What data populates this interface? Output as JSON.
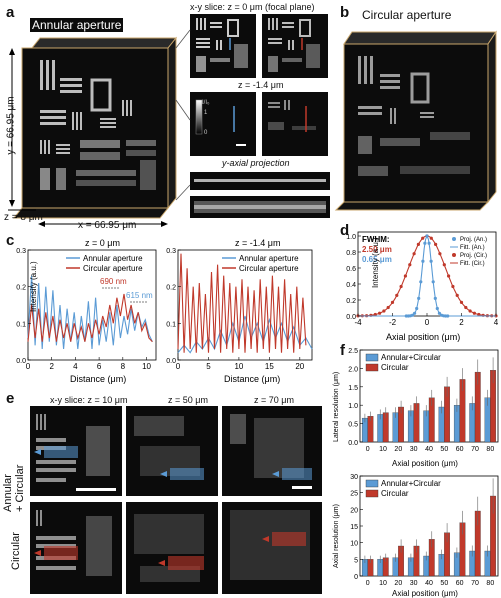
{
  "panels": {
    "a": "a",
    "b": "b",
    "c": "c",
    "d": "d",
    "e": "e",
    "f": "f"
  },
  "a": {
    "title": "Annular aperture",
    "y_dim": "y = 66.95 μm",
    "z_dim": "z = 8 μm",
    "x_dim": "x = 66.95 μm"
  },
  "b": {
    "title": "Circular aperture"
  },
  "middle": {
    "slice_title": "x-y slice: z = 0 μm (focal plane)",
    "slice_title2": "z = -1.4 μm",
    "colorbar_label": "I/I₀",
    "colorbar_max": "1",
    "colorbar_min": "0",
    "proj_title": "y-axial projection"
  },
  "c": {
    "left_title": "z = 0 μm",
    "right_title": "z = -1.4 μm",
    "ylabel": "Intensity (a.u.)",
    "xlabel": "Distance (μm)",
    "legend": [
      "Annular aperture",
      "Circular aperture"
    ],
    "ann_690": "690 nm",
    "ann_615": "615 nm",
    "left_xticks": [
      "0",
      "2",
      "4",
      "6",
      "8",
      "10"
    ],
    "right_xticks": [
      "0",
      "5",
      "10",
      "15",
      "20"
    ],
    "left_yticks": [
      "0.0",
      "0.1",
      "0.2",
      "0.3"
    ],
    "right_yticks": [
      "0.0",
      "0.1",
      "0.2",
      "0.3"
    ]
  },
  "d": {
    "fwhm_label": "FWHM:",
    "fwhm_red": "2.50 μm",
    "fwhm_blue": "0.65 μm",
    "legend": [
      "Proj. (An.)",
      "Fitt. (An.)",
      "Proj. (Cir.)",
      "Fitt. (Cir.)"
    ],
    "ylabel": "Intensity (a.u.)",
    "xlabel": "Axial position (μm)",
    "xticks": [
      "-4",
      "-2",
      "0",
      "2",
      "4"
    ],
    "yticks": [
      "0.0",
      "0.2",
      "0.4",
      "0.6",
      "0.8",
      "1.0"
    ]
  },
  "e": {
    "title1": "x-y slice: z = 10 μm",
    "title2": "z = 50 μm",
    "title3": "z = 70 μm",
    "row1_label": "Annular\n+ Circular",
    "row2_label": "Circular"
  },
  "f": {
    "legend": [
      "Annular+Circular",
      "Circular"
    ],
    "top_ylabel": "Lateral resolution (μm)",
    "bottom_ylabel": "Axial resolution (μm)",
    "xlabel": "Axial position (μm)",
    "xticks": [
      "0",
      "10",
      "20",
      "30",
      "40",
      "50",
      "60",
      "70",
      "80"
    ],
    "top_yticks": [
      "0.0",
      "0.5",
      "1.0",
      "1.5",
      "2.0",
      "2.5"
    ],
    "bottom_yticks": [
      "0",
      "5",
      "10",
      "15",
      "20",
      "25",
      "30"
    ]
  },
  "colors": {
    "blue": "#5b9bd5",
    "red": "#c0392b",
    "box": "#c9a66b"
  },
  "chart_data": [
    {
      "type": "line",
      "title": "z = 0 μm",
      "xlabel": "Distance (μm)",
      "ylabel": "Intensity (a.u.)",
      "xlim": [
        0,
        10.8
      ],
      "ylim": [
        0,
        0.3
      ],
      "series": [
        {
          "name": "Annular aperture",
          "x": [
            0,
            0.3,
            0.6,
            0.9,
            1.2,
            1.5,
            1.8,
            2.1,
            2.4,
            2.7,
            3.0,
            3.3,
            3.6,
            3.9,
            4.2,
            4.5,
            4.8,
            5.1,
            5.4,
            5.7,
            6.0,
            6.3,
            6.6,
            6.9,
            7.2,
            7.5,
            7.8,
            8.1,
            8.4,
            8.7,
            9.0,
            9.3,
            9.6,
            9.9,
            10.2,
            10.5
          ],
          "y": [
            0.06,
            0.23,
            0.04,
            0.21,
            0.03,
            0.2,
            0.05,
            0.19,
            0.04,
            0.15,
            0.03,
            0.14,
            0.05,
            0.13,
            0.03,
            0.12,
            0.05,
            0.16,
            0.03,
            0.17,
            0.04,
            0.11,
            0.05,
            0.13,
            0.04,
            0.15,
            0.06,
            0.12,
            0.07,
            0.14,
            0.08,
            0.13,
            0.09,
            0.11,
            0.07,
            0.05
          ]
        },
        {
          "name": "Circular aperture",
          "x": [
            0,
            0.3,
            0.6,
            0.9,
            1.2,
            1.5,
            1.8,
            2.1,
            2.4,
            2.7,
            3.0,
            3.3,
            3.6,
            3.9,
            4.2,
            4.5,
            4.8,
            5.1,
            5.4,
            5.7,
            6.0,
            6.3,
            6.6,
            6.9,
            7.2,
            7.5,
            7.8,
            8.1,
            8.4,
            8.7,
            9.0,
            9.3,
            9.6,
            9.9,
            10.2,
            10.5
          ],
          "y": [
            0.05,
            0.15,
            0.06,
            0.14,
            0.05,
            0.13,
            0.06,
            0.12,
            0.05,
            0.11,
            0.06,
            0.1,
            0.05,
            0.1,
            0.06,
            0.09,
            0.05,
            0.1,
            0.06,
            0.11,
            0.07,
            0.12,
            0.09,
            0.15,
            0.1,
            0.17,
            0.12,
            0.18,
            0.11,
            0.15,
            0.1,
            0.13,
            0.08,
            0.1,
            0.06,
            0.05
          ]
        }
      ]
    },
    {
      "type": "line",
      "title": "z = -1.4 μm",
      "xlabel": "Distance (μm)",
      "ylabel": "Intensity (a.u.)",
      "xlim": [
        0,
        22
      ],
      "ylim": [
        0,
        0.3
      ],
      "series": [
        {
          "name": "Annular aperture",
          "x": [
            0,
            1,
            2,
            3,
            4,
            5,
            6,
            7,
            8,
            9,
            10,
            11,
            12,
            13,
            14,
            15,
            16,
            17,
            18,
            19,
            20,
            21,
            22
          ],
          "y": [
            0.02,
            0.04,
            0.02,
            0.05,
            0.03,
            0.06,
            0.03,
            0.08,
            0.04,
            0.1,
            0.05,
            0.12,
            0.06,
            0.1,
            0.05,
            0.11,
            0.06,
            0.1,
            0.05,
            0.09,
            0.04,
            0.06,
            0.03
          ]
        },
        {
          "name": "Circular aperture",
          "x": [
            0,
            0.5,
            1,
            1.5,
            2,
            2.5,
            3,
            3.5,
            4,
            4.5,
            5,
            5.5,
            6,
            6.5,
            7,
            7.5,
            8,
            8.5,
            9,
            9.5,
            10,
            10.5,
            11,
            11.5,
            12,
            12.5,
            13,
            13.5,
            14,
            14.5,
            15,
            15.5,
            16,
            16.5,
            17,
            17.5,
            18,
            18.5,
            19,
            19.5,
            20,
            20.5,
            21
          ],
          "y": [
            0.03,
            0.29,
            0.02,
            0.25,
            0.03,
            0.2,
            0.02,
            0.21,
            0.03,
            0.18,
            0.02,
            0.24,
            0.03,
            0.26,
            0.02,
            0.23,
            0.03,
            0.21,
            0.02,
            0.2,
            0.03,
            0.22,
            0.02,
            0.2,
            0.03,
            0.19,
            0.02,
            0.22,
            0.03,
            0.2,
            0.02,
            0.23,
            0.03,
            0.2,
            0.02,
            0.22,
            0.03,
            0.18,
            0.02,
            0.2,
            0.03,
            0.17,
            0.04
          ]
        }
      ]
    },
    {
      "type": "line",
      "xlabel": "Axial position (μm)",
      "ylabel": "Intensity (a.u.)",
      "xlim": [
        -4,
        4
      ],
      "ylim": [
        0,
        1.05
      ],
      "series": [
        {
          "name": "Fitt. (Cir.)",
          "fwhm": 2.5,
          "peak": 1.0
        },
        {
          "name": "Fitt. (An.)",
          "fwhm": 0.65,
          "peak": 1.0
        }
      ]
    },
    {
      "type": "bar",
      "categories": [
        "0",
        "10",
        "20",
        "30",
        "40",
        "50",
        "60",
        "70",
        "80"
      ],
      "xlabel": "Axial position (μm)",
      "ylabel": "Lateral resolution (μm)",
      "ylim": [
        0,
        2.5
      ],
      "series": [
        {
          "name": "Annular+Circular",
          "values": [
            0.65,
            0.75,
            0.8,
            0.85,
            0.85,
            0.95,
            1.0,
            1.05,
            1.2
          ]
        },
        {
          "name": "Circular",
          "values": [
            0.7,
            0.8,
            0.95,
            1.05,
            1.2,
            1.5,
            1.7,
            1.9,
            1.95
          ]
        }
      ]
    },
    {
      "type": "bar",
      "categories": [
        "0",
        "10",
        "20",
        "30",
        "40",
        "50",
        "60",
        "70",
        "80"
      ],
      "xlabel": "Axial position (μm)",
      "ylabel": "Axial resolution (μm)",
      "ylim": [
        0,
        30
      ],
      "series": [
        {
          "name": "Annular+Circular",
          "values": [
            5,
            5,
            5.5,
            5.5,
            6,
            6.5,
            7,
            7.5,
            7.5
          ]
        },
        {
          "name": "Circular",
          "values": [
            5,
            5.5,
            9,
            9,
            11,
            13,
            16,
            19.5,
            24
          ]
        }
      ]
    }
  ]
}
